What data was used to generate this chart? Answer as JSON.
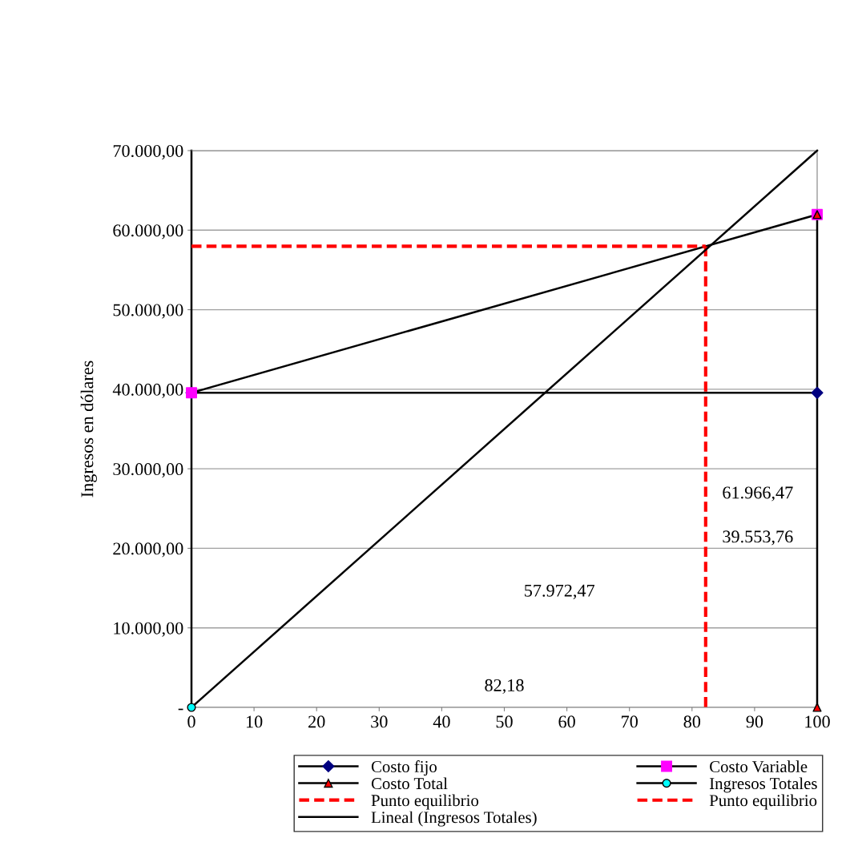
{
  "chart_data": {
    "type": "line",
    "ylabel": "Ingresos en dólares",
    "xlim": [
      0,
      100
    ],
    "xticks": [
      0,
      10,
      20,
      30,
      40,
      50,
      60,
      70,
      80,
      90,
      100
    ],
    "ylim": [
      0,
      70000
    ],
    "yticks": [
      {
        "value": 0,
        "label": "-"
      },
      {
        "value": 10000,
        "label": "10.000,00"
      },
      {
        "value": 20000,
        "label": "20.000,00"
      },
      {
        "value": 30000,
        "label": "30.000,00"
      },
      {
        "value": 40000,
        "label": "40.000,00"
      },
      {
        "value": 50000,
        "label": "50.000,00"
      },
      {
        "value": 60000,
        "label": "60.000,00"
      },
      {
        "value": 70000,
        "label": "70.000,00"
      }
    ],
    "grid": "y",
    "legend": "bottom",
    "series": [
      {
        "name": "Costo fijo",
        "color": "#000000",
        "marker": "diamond",
        "colors": [
          "#000080",
          "#000080"
        ],
        "line_style": "solid",
        "x": [
          0,
          100
        ],
        "values": [
          39553.76,
          39553.76
        ]
      },
      {
        "name": "Costo Variable",
        "color": "#000000",
        "marker": "square",
        "colors": [
          "#ff00ff",
          "#ff00ff"
        ],
        "line_style": "solid",
        "x": [
          0,
          100
        ],
        "values": [
          39553.76,
          61966.47
        ]
      },
      {
        "name": "Costo Total",
        "color": "#000000",
        "marker": "triangle",
        "colors": [
          "#ff0000",
          "#ff0000"
        ],
        "line_style": "solid",
        "x": [
          100,
          100
        ],
        "values": [
          0,
          61966.47
        ]
      },
      {
        "name": "Ingresos Totales",
        "color": "#000000",
        "marker": "circle",
        "colors": [
          "#00ffff"
        ],
        "line_style": "solid",
        "x": [
          0
        ],
        "values": [
          0
        ]
      },
      {
        "name": "Punto equilibrio",
        "color": "#ff0000",
        "marker": "none",
        "line_style": "dashed",
        "x": [
          0,
          82.18
        ],
        "values": [
          57972.47,
          57972.47
        ]
      },
      {
        "name": "Punto equilibrio",
        "color": "#ff0000",
        "marker": "none",
        "line_style": "dashed",
        "x": [
          82.18,
          82.18
        ],
        "values": [
          57972.47,
          0
        ]
      },
      {
        "name": "Lineal (Ingresos Totales)",
        "color": "#000000",
        "marker": "none",
        "line_style": "solid",
        "x": [
          0,
          100
        ],
        "values": [
          0,
          70000
        ]
      }
    ],
    "annotations": [
      "61.966,47",
      "39.553,76",
      "57.972,47",
      "82,18"
    ]
  }
}
